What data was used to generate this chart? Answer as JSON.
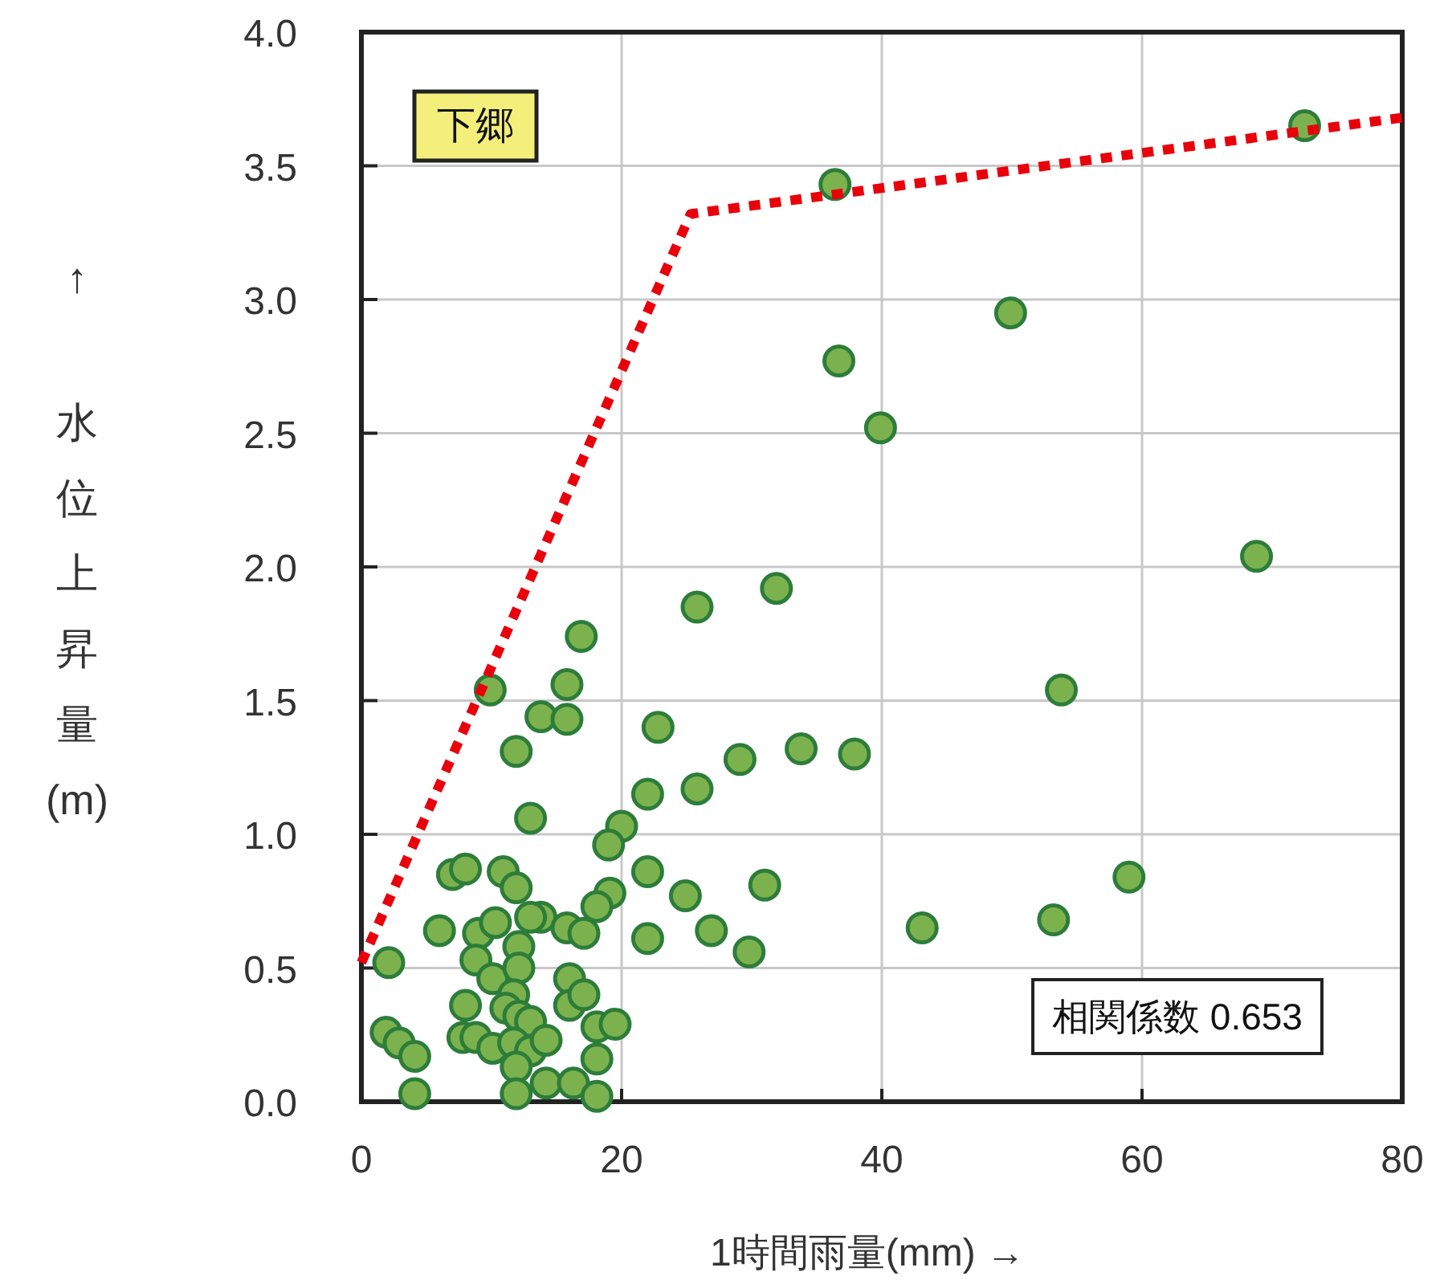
{
  "chart_data": {
    "type": "scatter",
    "xlabel": "1時間雨量(mm) →",
    "ylabel": "↑ 水位上昇量(m)",
    "annotations": [
      "下郷",
      "相関係数 0.653"
    ],
    "xlim": [
      0,
      80
    ],
    "ylim": [
      0,
      4
    ],
    "xticks": [
      0,
      20,
      40,
      60,
      80
    ],
    "yticks": [
      {
        "value": 0,
        "label": "0.0"
      },
      {
        "value": 0.5,
        "label": "0.5"
      },
      {
        "value": 1,
        "label": "1.0"
      },
      {
        "value": 1.5,
        "label": "1.5"
      },
      {
        "value": 2,
        "label": "2.0"
      },
      {
        "value": 2.5,
        "label": "2.5"
      },
      {
        "value": 3,
        "label": "3.0"
      },
      {
        "value": 3.5,
        "label": "3.5"
      },
      {
        "value": 4,
        "label": "4.0"
      }
    ],
    "grid": true,
    "marker": "circle",
    "series": [
      {
        "color": "#7cb24e",
        "x": [
          36.4,
          72.5,
          49.9,
          36.7,
          39.9,
          68.8,
          31.9,
          25.8,
          53.8,
          22.8,
          33.8,
          37.9,
          29.1,
          25.8,
          22.0,
          59.0,
          31.0,
          53.2,
          43.1,
          26.9,
          29.8,
          22.0,
          24.9,
          22.0,
          16.9,
          9.9,
          15.8,
          13.8,
          15.8,
          11.9,
          13.0,
          20.0,
          19.0,
          7.0,
          8.0,
          10.9,
          11.9,
          19.1,
          18.1,
          6.0,
          9.0,
          10.3,
          12.1,
          13.8,
          13.0,
          15.8,
          17.1,
          2.1,
          8.8,
          10.1,
          12.1,
          8.0,
          11.7,
          16.0,
          16.0,
          17.1,
          18.1,
          19.5,
          1.9,
          2.9,
          4.1,
          7.8,
          8.8,
          10.1,
          11.1,
          12.1,
          13.0,
          11.7,
          13.0,
          14.2,
          18.1,
          4.1,
          11.9,
          11.9,
          14.2,
          16.3,
          18.1
        ],
        "values": [
          3.43,
          3.65,
          2.95,
          2.77,
          2.52,
          2.04,
          1.92,
          1.85,
          1.54,
          1.4,
          1.32,
          1.3,
          1.28,
          1.17,
          1.15,
          0.84,
          0.81,
          0.68,
          0.65,
          0.64,
          0.56,
          0.61,
          0.77,
          0.86,
          1.74,
          1.54,
          1.56,
          1.44,
          1.43,
          1.31,
          1.06,
          1.03,
          0.96,
          0.85,
          0.87,
          0.86,
          0.8,
          0.78,
          0.73,
          0.64,
          0.63,
          0.67,
          0.58,
          0.69,
          0.69,
          0.65,
          0.63,
          0.52,
          0.53,
          0.46,
          0.5,
          0.36,
          0.4,
          0.46,
          0.36,
          0.4,
          0.28,
          0.29,
          0.26,
          0.22,
          0.17,
          0.24,
          0.24,
          0.2,
          0.35,
          0.32,
          0.3,
          0.22,
          0.19,
          0.23,
          0.16,
          0.03,
          0.13,
          0.03,
          0.07,
          0.07,
          0.02
        ]
      },
      {
        "type": "line",
        "color": "#e8000b",
        "line_style": "dotted",
        "marker": "none",
        "x": [
          0,
          25.3,
          80
        ],
        "values": [
          0.52,
          3.32,
          3.68
        ]
      }
    ]
  }
}
